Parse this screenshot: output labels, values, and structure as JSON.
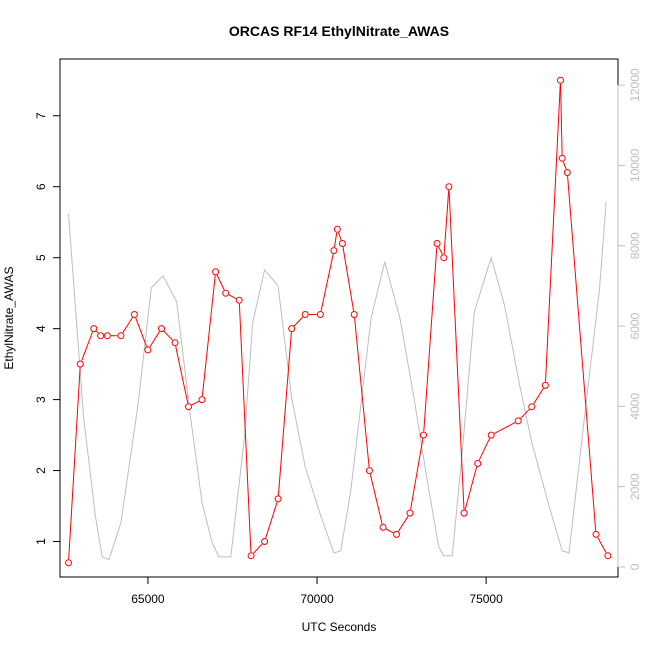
{
  "chart_data": {
    "type": "line",
    "title": "ORCAS RF14 EthylNitrate_AWAS",
    "xlabel": "UTC Seconds",
    "ylabel": "EthylNitrate_AWAS",
    "xlim": [
      62400,
      78900
    ],
    "ylim": [
      0.5,
      7.8
    ],
    "y2lim": [
      -250,
      12650
    ],
    "x_ticks": [
      65000,
      70000,
      75000
    ],
    "y_ticks": [
      1,
      2,
      3,
      4,
      5,
      6,
      7
    ],
    "y2_ticks": [
      0,
      2000,
      4000,
      6000,
      8000,
      10000,
      12000
    ],
    "grid": false,
    "legend": "none",
    "colors": {
      "primary": "#ff0000",
      "secondary": "#bebebe",
      "axis": "#000000"
    },
    "series": [
      {
        "axis": "left",
        "marker": "circle",
        "x": [
          62650,
          63000,
          63400,
          63600,
          63800,
          64200,
          64600,
          65000,
          65400,
          65800,
          66200,
          66600,
          67000,
          67300,
          67700,
          68050,
          68450,
          68850,
          69250,
          69650,
          70100,
          70500,
          70600,
          70750,
          71100,
          71550,
          71950,
          72350,
          72750,
          73150,
          73550,
          73750,
          73900,
          74350,
          74750,
          75150,
          75950,
          76350,
          76750,
          77200,
          77250,
          77400,
          78250,
          78600
        ],
        "y": [
          0.7,
          3.5,
          4.0,
          3.9,
          3.9,
          3.9,
          4.2,
          3.7,
          4.0,
          3.8,
          2.9,
          3.0,
          4.8,
          4.5,
          4.4,
          0.8,
          1.0,
          1.6,
          4.0,
          4.2,
          4.2,
          5.1,
          5.4,
          5.2,
          4.2,
          2.0,
          1.2,
          1.1,
          1.4,
          2.5,
          5.2,
          5.0,
          6.0,
          1.4,
          2.1,
          2.5,
          2.7,
          2.9,
          3.2,
          7.5,
          6.4,
          6.2,
          1.1,
          0.8
        ]
      },
      {
        "axis": "right",
        "marker": "none",
        "x": [
          62650,
          63100,
          63450,
          63650,
          63850,
          64200,
          64700,
          65100,
          65450,
          65850,
          66250,
          66600,
          66900,
          67100,
          67450,
          67850,
          68100,
          68450,
          68850,
          69250,
          69650,
          70100,
          70500,
          70700,
          71000,
          71600,
          72000,
          72450,
          72850,
          73250,
          73600,
          73750,
          74000,
          74300,
          74650,
          75000,
          75150,
          75550,
          76000,
          76350,
          76850,
          77250,
          77450,
          77850,
          78350,
          78550
        ],
        "y": [
          8800,
          3700,
          1250,
          250,
          180,
          1100,
          4000,
          6950,
          7250,
          6600,
          3800,
          1600,
          600,
          250,
          250,
          3200,
          6100,
          7400,
          7000,
          4200,
          2500,
          1300,
          350,
          400,
          1900,
          6200,
          7600,
          6200,
          4300,
          2200,
          500,
          280,
          280,
          2900,
          6350,
          7300,
          7700,
          6500,
          4500,
          3100,
          1550,
          400,
          350,
          3300,
          6900,
          9100
        ]
      }
    ]
  }
}
